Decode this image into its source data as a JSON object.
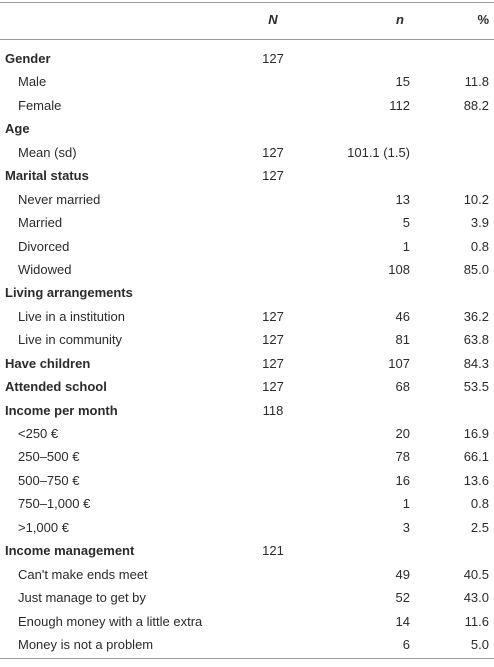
{
  "table": {
    "header": {
      "N": "N",
      "n": "n",
      "pct": "%"
    },
    "groups": [
      {
        "label": "Gender",
        "N": "127",
        "items": [
          {
            "label": "Male",
            "n": "15",
            "pct": "11.8"
          },
          {
            "label": "Female",
            "n": "112",
            "pct": "88.2"
          }
        ]
      },
      {
        "label": "Age",
        "items": [
          {
            "label": "Mean (sd)",
            "N": "127",
            "n": "101.1 (1.5)"
          }
        ]
      },
      {
        "label": "Marital status",
        "N": "127",
        "items": [
          {
            "label": "Never married",
            "n": "13",
            "pct": "10.2"
          },
          {
            "label": "Married",
            "n": "5",
            "pct": "3.9"
          },
          {
            "label": "Divorced",
            "n": "1",
            "pct": "0.8"
          },
          {
            "label": "Widowed",
            "n": "108",
            "pct": "85.0"
          }
        ]
      },
      {
        "label": "Living arrangements",
        "items": [
          {
            "label": "Live in a institution",
            "N": "127",
            "n": "46",
            "pct": "36.2"
          },
          {
            "label": "Live in community",
            "N": "127",
            "n": "81",
            "pct": "63.8"
          }
        ]
      },
      {
        "label": "Have children",
        "N": "127",
        "n": "107",
        "pct": "84.3",
        "items": []
      },
      {
        "label": "Attended school",
        "N": "127",
        "n": "68",
        "pct": "53.5",
        "items": []
      },
      {
        "label": "Income per month",
        "N": "118",
        "items": [
          {
            "label": "<250 €",
            "n": "20",
            "pct": "16.9"
          },
          {
            "label": "250–500 €",
            "n": "78",
            "pct": "66.1"
          },
          {
            "label": "500–750 €",
            "n": "16",
            "pct": "13.6"
          },
          {
            "label": "750–1,000 €",
            "n": "1",
            "pct": "0.8"
          },
          {
            "label": ">1,000 €",
            "n": "3",
            "pct": "2.5"
          }
        ]
      },
      {
        "label": "Income management",
        "N": "121",
        "items": [
          {
            "label": "Can't make ends meet",
            "n": "49",
            "pct": "40.5"
          },
          {
            "label": "Just manage to get by",
            "n": "52",
            "pct": "43.0"
          },
          {
            "label": "Enough money with a little extra",
            "n": "14",
            "pct": "11.6"
          },
          {
            "label": "Money is not a problem",
            "n": "6",
            "pct": "5.0"
          }
        ]
      }
    ]
  }
}
